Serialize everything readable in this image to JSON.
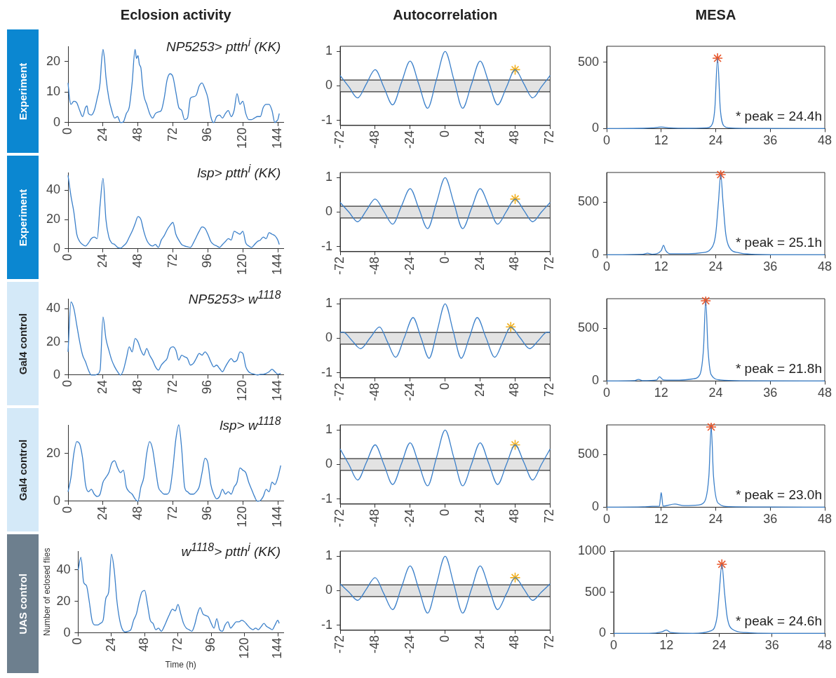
{
  "chart_data": [
    {
      "type": "line",
      "title": "Eclosion activity",
      "subtitle": "Experiment",
      "annotations": [
        "NP5253> ptth$^{i}$ (KK)"
      ],
      "xlim": [
        0,
        148
      ],
      "xticks": [
        0,
        24,
        48,
        72,
        96,
        120,
        144
      ],
      "ylim": [
        0,
        25
      ],
      "yticks": [
        0,
        10,
        20
      ],
      "marker": "none",
      "series": [
        {
          "color": "#3a7fc9",
          "x": [
            0,
            1,
            2,
            4,
            6,
            8,
            10,
            12,
            13,
            14,
            16,
            18,
            20,
            22,
            23,
            24,
            25,
            26,
            28,
            30,
            32,
            34,
            35,
            36,
            38,
            40,
            42,
            44,
            46,
            47,
            48,
            49,
            50,
            51,
            52,
            54,
            56,
            58,
            60,
            62,
            64,
            66,
            68,
            70,
            72,
            74,
            76,
            78,
            80,
            82,
            84,
            86,
            88,
            90,
            92,
            94,
            96,
            98,
            100,
            102,
            104,
            106,
            108,
            110,
            112,
            114,
            116,
            118,
            120,
            122,
            124,
            126,
            128,
            130,
            132,
            134,
            136,
            138,
            140,
            142,
            143,
            144,
            145
          ],
          "values": [
            13,
            8,
            6,
            7,
            6.5,
            4,
            2,
            5,
            5.5,
            3,
            2.5,
            4,
            8,
            13,
            20,
            24,
            21,
            15,
            8,
            4,
            1.5,
            2,
            1,
            0,
            0.3,
            3,
            5,
            13,
            24,
            21,
            22,
            19,
            18,
            13,
            9,
            6,
            3,
            1.5,
            3,
            3.5,
            4,
            8,
            14,
            16,
            15,
            10,
            5,
            4,
            1,
            1.5,
            8,
            8.5,
            9,
            12,
            13,
            11,
            8,
            2,
            0,
            2,
            2.5,
            1.5,
            3,
            4,
            2,
            4,
            9.5,
            6,
            7,
            3,
            1,
            1,
            1.5,
            2,
            2,
            5,
            6,
            6,
            4,
            0,
            0.5,
            1,
            3
          ]
        }
      ]
    },
    {
      "type": "line",
      "title": "Autocorrelation",
      "xlim": [
        -72,
        72
      ],
      "xticks": [
        -72,
        -48,
        -24,
        0,
        24,
        48,
        72
      ],
      "ylim": [
        -1.15,
        1.15
      ],
      "yticks": [
        -1,
        0,
        1
      ],
      "marker": "none",
      "bands": [
        {
          "axis": "y",
          "from": -0.17,
          "to": 0.17,
          "color": "#e3e3e3"
        }
      ],
      "ref_lines": [
        {
          "axis": "y",
          "value": 0.17,
          "color": "#333333"
        },
        {
          "axis": "y",
          "value": -0.17,
          "color": "#333333"
        }
      ],
      "series": [
        {
          "color": "#3a7fc9",
          "x": [
            -72,
            -66,
            -60,
            -54,
            -48,
            -42,
            -36,
            -30,
            -24,
            -18,
            -12,
            -6,
            0,
            6,
            12,
            18,
            24,
            30,
            36,
            42,
            48,
            54,
            60,
            66,
            72
          ],
          "values": [
            0.3,
            -0.03,
            -0.35,
            0.06,
            0.47,
            -0.04,
            -0.55,
            0.09,
            0.72,
            0.04,
            -0.65,
            0.18,
            1,
            0.18,
            -0.65,
            0.04,
            0.72,
            0.09,
            -0.55,
            -0.04,
            0.47,
            0.06,
            -0.35,
            -0.03,
            0.3
          ]
        },
        {
          "type": "scatter",
          "marker": "cross",
          "color": "#f2b01e",
          "x": [
            48
          ],
          "values": [
            0.47
          ]
        }
      ]
    },
    {
      "type": "line",
      "title": "MESA",
      "annotations": [
        "* peak = 24.4h"
      ],
      "xlim": [
        0,
        48
      ],
      "xticks": [
        0,
        12,
        24,
        36,
        48
      ],
      "ylim": [
        0,
        620
      ],
      "yticks": [
        0,
        500
      ],
      "marker": "none",
      "series": [
        {
          "color": "#3a7fc9",
          "x": [
            0,
            8,
            10,
            12,
            14,
            18,
            22,
            23,
            23.8,
            24.4,
            25,
            25.8,
            27,
            30,
            48
          ],
          "values": [
            0,
            2,
            5,
            12,
            5,
            2,
            5,
            20,
            150,
            530,
            150,
            20,
            5,
            1,
            0
          ]
        },
        {
          "type": "scatter",
          "marker": "cross",
          "color": "#e8562a",
          "x": [
            24.4
          ],
          "values": [
            530
          ]
        }
      ]
    },
    {
      "type": "line",
      "subtitle": "Experiment",
      "annotations": [
        "lsp> ptth$^{i}$ (KK)"
      ],
      "xlim": [
        0,
        148
      ],
      "xticks": [
        0,
        24,
        48,
        72,
        96,
        120,
        144
      ],
      "ylim": [
        0,
        52
      ],
      "yticks": [
        0,
        20,
        40
      ],
      "marker": "none",
      "series": [
        {
          "color": "#3a7fc9",
          "x": [
            0,
            2,
            4,
            6,
            8,
            10,
            12,
            14,
            16,
            18,
            20,
            22,
            24,
            26,
            28,
            30,
            32,
            34,
            36,
            38,
            40,
            42,
            44,
            46,
            48,
            50,
            52,
            54,
            56,
            58,
            60,
            62,
            64,
            66,
            68,
            70,
            72,
            74,
            76,
            78,
            80,
            82,
            84,
            86,
            88,
            90,
            92,
            94,
            96,
            98,
            100,
            102,
            104,
            106,
            108,
            110,
            112,
            114,
            116,
            118,
            120,
            122,
            124,
            126,
            128,
            130,
            132,
            134,
            136,
            138,
            140,
            142,
            144,
            145
          ],
          "values": [
            50,
            36,
            25,
            10,
            5,
            3,
            2,
            4,
            7,
            8,
            7,
            30,
            48,
            20,
            8,
            4,
            3,
            1,
            0.5,
            2,
            4,
            8,
            12,
            17,
            22,
            20,
            12,
            6,
            3,
            2,
            3,
            1,
            6,
            9,
            13,
            16,
            18,
            10,
            6,
            3,
            2,
            1.5,
            1,
            4,
            8,
            12,
            15,
            14,
            10,
            5,
            3,
            2,
            1,
            3,
            5,
            7,
            6,
            12,
            11,
            10,
            12,
            4,
            2,
            1,
            3,
            5,
            6,
            8,
            7,
            11,
            10,
            9,
            6,
            3
          ]
        }
      ]
    },
    {
      "type": "line",
      "xlim": [
        -72,
        72
      ],
      "xticks": [
        -72,
        -48,
        -24,
        0,
        24,
        48,
        72
      ],
      "ylim": [
        -1.15,
        1.15
      ],
      "yticks": [
        -1,
        0,
        1
      ],
      "marker": "none",
      "bands": [
        {
          "axis": "y",
          "from": -0.17,
          "to": 0.17,
          "color": "#e3e3e3"
        }
      ],
      "ref_lines": [
        {
          "axis": "y",
          "value": 0.17,
          "color": "#333333"
        },
        {
          "axis": "y",
          "value": -0.17,
          "color": "#333333"
        }
      ],
      "series": [
        {
          "color": "#3a7fc9",
          "x": [
            -72,
            -66,
            -60,
            -54,
            -48,
            -42,
            -36,
            -30,
            -24,
            -18,
            -12,
            -6,
            0,
            6,
            12,
            18,
            24,
            30,
            36,
            42,
            48,
            54,
            60,
            66,
            72
          ],
          "values": [
            0.28,
            0,
            -0.28,
            0.05,
            0.38,
            0.02,
            -0.35,
            0.17,
            0.68,
            0.1,
            -0.48,
            0.26,
            1,
            0.26,
            -0.48,
            0.1,
            0.68,
            0.17,
            -0.35,
            0.02,
            0.38,
            0.05,
            -0.28,
            0,
            0.28
          ]
        },
        {
          "type": "scatter",
          "marker": "cross",
          "color": "#f2b01e",
          "x": [
            48
          ],
          "values": [
            0.38
          ]
        }
      ]
    },
    {
      "type": "line",
      "annotations": [
        "* peak = 25.1h"
      ],
      "xlim": [
        0,
        48
      ],
      "xticks": [
        0,
        12,
        24,
        36,
        48
      ],
      "ylim": [
        0,
        780
      ],
      "yticks": [
        0,
        500
      ],
      "marker": "none",
      "series": [
        {
          "color": "#3a7fc9",
          "x": [
            0,
            8,
            9,
            10,
            12,
            12.5,
            13,
            14,
            18,
            21,
            23,
            24,
            24.6,
            25.1,
            25.6,
            26.2,
            27,
            29,
            32,
            40,
            48
          ],
          "values": [
            0,
            5,
            15,
            5,
            40,
            90,
            40,
            10,
            10,
            20,
            60,
            200,
            500,
            760,
            500,
            200,
            70,
            20,
            5,
            0,
            0
          ]
        },
        {
          "type": "scatter",
          "marker": "cross",
          "color": "#e8562a",
          "x": [
            25.1
          ],
          "values": [
            760
          ]
        }
      ]
    },
    {
      "type": "line",
      "subtitle": "Gal4 control",
      "annotations": [
        "NP5253> w$^{1118}$"
      ],
      "xlim": [
        0,
        148
      ],
      "xticks": [
        0,
        24,
        48,
        72,
        96,
        120,
        144
      ],
      "ylim": [
        0,
        46
      ],
      "yticks": [
        0,
        20,
        40
      ],
      "marker": "none",
      "series": [
        {
          "color": "#3a7fc9",
          "x": [
            0,
            2,
            4,
            6,
            8,
            10,
            12,
            14,
            16,
            18,
            20,
            22,
            24,
            26,
            28,
            30,
            32,
            34,
            36,
            38,
            40,
            42,
            44,
            46,
            48,
            50,
            52,
            54,
            56,
            58,
            60,
            62,
            64,
            66,
            68,
            70,
            72,
            74,
            76,
            78,
            80,
            82,
            84,
            86,
            88,
            90,
            92,
            94,
            96,
            98,
            100,
            102,
            104,
            106,
            108,
            110,
            112,
            114,
            116,
            118,
            120,
            122,
            124,
            126,
            128,
            130,
            132,
            134,
            136,
            138,
            140,
            142,
            144,
            146
          ],
          "values": [
            14,
            44,
            40,
            30,
            20,
            12,
            8,
            3,
            0,
            0,
            0.5,
            3,
            35,
            22,
            15,
            9,
            5,
            2,
            0,
            3,
            10,
            17,
            14,
            22,
            20,
            15,
            12,
            16,
            12,
            9,
            5,
            3,
            6,
            8,
            10,
            16,
            17,
            15,
            9,
            12,
            11,
            10,
            6,
            7,
            10,
            13,
            12,
            14,
            12,
            8,
            5,
            6,
            4,
            2,
            5,
            8,
            10,
            8,
            9,
            14,
            13,
            5,
            2,
            1,
            0.5,
            0,
            0.5,
            0.5,
            1,
            2,
            3.5,
            2,
            0.5,
            1
          ]
        }
      ]
    },
    {
      "type": "line",
      "xlim": [
        -72,
        72
      ],
      "xticks": [
        -72,
        -48,
        -24,
        0,
        24,
        48,
        72
      ],
      "ylim": [
        -1.15,
        1.15
      ],
      "yticks": [
        -1,
        0,
        1
      ],
      "marker": "none",
      "bands": [
        {
          "axis": "y",
          "from": -0.17,
          "to": 0.17,
          "color": "#e3e3e3"
        }
      ],
      "ref_lines": [
        {
          "axis": "y",
          "value": 0.17,
          "color": "#333333"
        },
        {
          "axis": "y",
          "value": -0.17,
          "color": "#333333"
        }
      ],
      "series": [
        {
          "color": "#3a7fc9",
          "x": [
            -72,
            -70,
            -64,
            -58,
            -51.5,
            -45,
            -39.5,
            -34,
            -28,
            -22,
            -16.5,
            -11,
            -5.5,
            0,
            5.5,
            11,
            16.5,
            22,
            28,
            34,
            39.5,
            45,
            51.5,
            58,
            64,
            70,
            72
          ],
          "values": [
            0.17,
            0.18,
            -0.06,
            -0.3,
            0.01,
            0.33,
            -0.11,
            -0.55,
            0.02,
            0.6,
            0.01,
            -0.58,
            0.21,
            1,
            0.21,
            -0.58,
            0.01,
            0.6,
            0.02,
            -0.55,
            -0.11,
            0.33,
            0.01,
            -0.3,
            -0.06,
            0.18,
            0.17
          ]
        },
        {
          "type": "scatter",
          "marker": "cross",
          "color": "#f2b01e",
          "x": [
            45
          ],
          "values": [
            0.33
          ]
        }
      ]
    },
    {
      "type": "line",
      "annotations": [
        "* peak = 21.8h"
      ],
      "xlim": [
        0,
        48
      ],
      "xticks": [
        0,
        12,
        24,
        36,
        48
      ],
      "ylim": [
        0,
        780
      ],
      "yticks": [
        0,
        500
      ],
      "marker": "none",
      "series": [
        {
          "color": "#3a7fc9",
          "x": [
            0,
            6,
            7,
            8,
            11,
            11.6,
            12.5,
            16,
            19,
            20.5,
            21.3,
            21.8,
            22.3,
            23,
            25,
            30,
            48
          ],
          "values": [
            0,
            3,
            15,
            3,
            10,
            40,
            10,
            8,
            20,
            60,
            300,
            760,
            300,
            60,
            10,
            2,
            0
          ]
        },
        {
          "type": "scatter",
          "marker": "cross",
          "color": "#e8562a",
          "x": [
            21.8
          ],
          "values": [
            760
          ]
        }
      ]
    },
    {
      "type": "line",
      "subtitle": "Gal4 control",
      "annotations": [
        "lsp> w$^{1118}$"
      ],
      "xlim": [
        0,
        148
      ],
      "xticks": [
        0,
        24,
        48,
        72,
        96,
        120,
        144
      ],
      "ylim": [
        0,
        32
      ],
      "yticks": [
        0,
        20
      ],
      "marker": "none",
      "series": [
        {
          "color": "#3a7fc9",
          "x": [
            0,
            2,
            4,
            6,
            8,
            10,
            12,
            14,
            16,
            18,
            20,
            22,
            24,
            26,
            28,
            30,
            32,
            34,
            36,
            38,
            40,
            42,
            44,
            46,
            48,
            50,
            52,
            54,
            56,
            58,
            60,
            62,
            64,
            66,
            68,
            70,
            72,
            74,
            76,
            78,
            80,
            82,
            84,
            86,
            88,
            90,
            92,
            94,
            96,
            98,
            100,
            102,
            104,
            106,
            108,
            110,
            112,
            114,
            116,
            118,
            120,
            122,
            124,
            126,
            128,
            130,
            132,
            134,
            136,
            138,
            140,
            142,
            144,
            146
          ],
          "values": [
            4,
            10,
            20,
            25,
            24,
            18,
            7,
            4,
            5,
            3,
            2,
            3,
            8,
            10,
            12,
            16,
            17,
            14,
            12,
            13,
            6,
            4,
            3,
            1,
            0,
            6,
            10,
            20,
            25,
            22,
            14,
            6,
            4,
            3,
            3,
            5,
            14,
            26,
            32,
            22,
            6,
            4,
            3,
            3,
            4,
            6,
            12,
            18,
            16,
            7,
            3,
            1,
            2,
            5,
            3,
            4,
            3,
            6,
            8,
            14,
            13,
            12,
            8,
            5,
            2,
            0,
            0.3,
            2,
            5,
            4,
            8,
            7,
            10,
            15
          ]
        }
      ]
    },
    {
      "type": "line",
      "xlim": [
        -72,
        72
      ],
      "xticks": [
        -72,
        -48,
        -24,
        0,
        24,
        48,
        72
      ],
      "ylim": [
        -1.15,
        1.15
      ],
      "yticks": [
        -1,
        0,
        1
      ],
      "marker": "none",
      "bands": [
        {
          "axis": "y",
          "from": -0.17,
          "to": 0.17,
          "color": "#e3e3e3"
        }
      ],
      "ref_lines": [
        {
          "axis": "y",
          "value": 0.17,
          "color": "#333333"
        },
        {
          "axis": "y",
          "value": -0.17,
          "color": "#333333"
        }
      ],
      "series": [
        {
          "color": "#3a7fc9",
          "x": [
            -72,
            -66,
            -60,
            -54,
            -48,
            -42,
            -36,
            -30,
            -24,
            -18,
            -12,
            -6,
            0,
            6,
            12,
            18,
            24,
            30,
            36,
            42,
            48,
            54,
            60,
            66,
            72
          ],
          "values": [
            0.45,
            0,
            -0.45,
            0.06,
            0.57,
            0,
            -0.58,
            0.02,
            0.63,
            0,
            -0.62,
            0.19,
            1,
            0.19,
            -0.62,
            0,
            0.63,
            0.02,
            -0.58,
            0,
            0.57,
            0.06,
            -0.45,
            0,
            0.45
          ]
        },
        {
          "type": "scatter",
          "marker": "cross",
          "color": "#f2b01e",
          "x": [
            48
          ],
          "values": [
            0.57
          ]
        }
      ]
    },
    {
      "type": "line",
      "annotations": [
        "* peak = 23.0h"
      ],
      "xlim": [
        0,
        48
      ],
      "xticks": [
        0,
        12,
        24,
        36,
        48
      ],
      "ylim": [
        0,
        780
      ],
      "yticks": [
        0,
        500
      ],
      "marker": "none",
      "series": [
        {
          "color": "#3a7fc9",
          "x": [
            0,
            8,
            10,
            11.6,
            12,
            12.4,
            15,
            17,
            20,
            21.5,
            22.5,
            23,
            23.5,
            24.5,
            27,
            36,
            48
          ],
          "values": [
            0,
            3,
            8,
            10,
            140,
            10,
            30,
            15,
            20,
            50,
            300,
            760,
            300,
            40,
            5,
            2,
            0
          ]
        },
        {
          "type": "scatter",
          "marker": "cross",
          "color": "#e8562a",
          "x": [
            23
          ],
          "values": [
            760
          ]
        }
      ]
    },
    {
      "type": "line",
      "subtitle": "UAS control",
      "annotations": [
        "w$^{1118}$> ptth$^{i}$ (KK)"
      ],
      "xlabel": "Time (h)",
      "ylabel": "Number of eclosed flies",
      "xlim": [
        0,
        148
      ],
      "xticks": [
        0,
        24,
        48,
        72,
        96,
        120,
        144
      ],
      "ylim": [
        0,
        52
      ],
      "yticks": [
        0,
        20,
        40
      ],
      "marker": "none",
      "series": [
        {
          "color": "#3a7fc9",
          "x": [
            0,
            2,
            4,
            6,
            8,
            10,
            12,
            14,
            16,
            18,
            20,
            22,
            24,
            26,
            28,
            30,
            32,
            34,
            36,
            38,
            40,
            42,
            44,
            46,
            48,
            50,
            52,
            54,
            56,
            58,
            60,
            62,
            64,
            66,
            68,
            70,
            72,
            74,
            76,
            78,
            80,
            82,
            84,
            86,
            88,
            90,
            92,
            94,
            96,
            98,
            100,
            102,
            104,
            106,
            108,
            110,
            112,
            114,
            116,
            118,
            120,
            122,
            124,
            126,
            128,
            130,
            132,
            134,
            136,
            138,
            140,
            142,
            144,
            145
          ],
          "values": [
            40,
            48,
            32,
            30,
            20,
            8,
            5,
            5,
            6,
            8,
            22,
            26,
            50,
            40,
            20,
            8,
            2,
            0.5,
            1,
            2,
            8,
            12,
            20,
            26,
            27,
            18,
            8,
            6,
            2,
            3,
            1,
            4,
            8,
            12,
            15,
            14,
            18,
            12,
            6,
            3,
            2,
            1,
            5,
            12,
            16,
            12,
            11,
            10,
            6,
            3,
            9,
            2,
            1,
            5,
            7,
            3,
            5,
            7,
            7,
            8,
            7,
            5,
            3,
            2,
            3,
            2,
            4,
            6,
            4,
            3,
            2,
            5,
            8,
            6
          ]
        }
      ]
    },
    {
      "type": "line",
      "xlim": [
        -72,
        72
      ],
      "xticks": [
        -72,
        -48,
        -24,
        0,
        24,
        48,
        72
      ],
      "ylim": [
        -1.15,
        1.15
      ],
      "yticks": [
        -1,
        0,
        1
      ],
      "marker": "none",
      "bands": [
        {
          "axis": "y",
          "from": -0.17,
          "to": 0.17,
          "color": "#e3e3e3"
        }
      ],
      "ref_lines": [
        {
          "axis": "y",
          "value": 0.17,
          "color": "#333333"
        },
        {
          "axis": "y",
          "value": -0.17,
          "color": "#333333"
        }
      ],
      "series": [
        {
          "color": "#3a7fc9",
          "x": [
            -72,
            -66,
            -60,
            -54,
            -48,
            -42,
            -36,
            -30,
            -24,
            -18,
            -12,
            -6,
            0,
            6,
            12,
            18,
            24,
            30,
            36,
            42,
            48,
            54,
            60,
            66,
            72
          ],
          "values": [
            0.2,
            -0.04,
            -0.28,
            0.05,
            0.38,
            -0.09,
            -0.55,
            0.09,
            0.72,
            0.04,
            -0.65,
            0.18,
            1,
            0.18,
            -0.65,
            0.04,
            0.72,
            0.09,
            -0.55,
            -0.09,
            0.38,
            0.05,
            -0.28,
            -0.04,
            0.2
          ]
        },
        {
          "type": "scatter",
          "marker": "cross",
          "color": "#f2b01e",
          "x": [
            48
          ],
          "values": [
            0.38
          ]
        }
      ]
    },
    {
      "type": "line",
      "annotations": [
        "* peak = 24.6h"
      ],
      "xlim": [
        0,
        48
      ],
      "xticks": [
        0,
        12,
        24,
        36,
        48
      ],
      "ylim": [
        0,
        1000
      ],
      "yticks": [
        0,
        500,
        1000
      ],
      "marker": "none",
      "series": [
        {
          "color": "#3a7fc9",
          "x": [
            0,
            8,
            11,
            12,
            13,
            18,
            22,
            23.5,
            24,
            24.6,
            25.2,
            25.8,
            27,
            30,
            36,
            48
          ],
          "values": [
            0,
            0,
            20,
            40,
            10,
            0,
            30,
            200,
            500,
            840,
            500,
            200,
            50,
            10,
            0,
            0
          ]
        },
        {
          "type": "scatter",
          "marker": "cross",
          "color": "#e8562a",
          "x": [
            24.6
          ],
          "values": [
            840
          ]
        }
      ]
    }
  ]
}
